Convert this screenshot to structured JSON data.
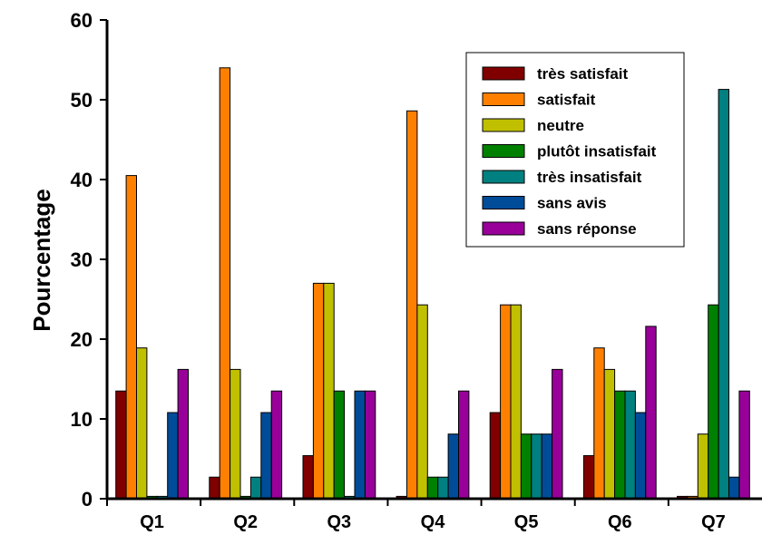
{
  "chart_data": {
    "type": "bar",
    "title": "",
    "xlabel": "",
    "ylabel": "Pourcentage",
    "ylim": [
      0,
      60
    ],
    "yticks": [
      0,
      10,
      20,
      30,
      40,
      50,
      60
    ],
    "grid": false,
    "legend_position": "top-right",
    "categories": [
      "Q1",
      "Q2",
      "Q3",
      "Q4",
      "Q5",
      "Q6",
      "Q7"
    ],
    "series": [
      {
        "name": "très satisfait",
        "color": "#800000",
        "values": [
          13.5,
          2.7,
          5.4,
          0.3,
          10.8,
          5.4,
          0.3
        ]
      },
      {
        "name": "satisfait",
        "color": "#ff8000",
        "values": [
          40.5,
          54.0,
          27.0,
          48.6,
          24.3,
          18.9,
          0.3
        ]
      },
      {
        "name": "neutre",
        "color": "#c0c000",
        "values": [
          18.9,
          16.2,
          27.0,
          24.3,
          24.3,
          16.2,
          8.1
        ]
      },
      {
        "name": "plutôt insatisfait",
        "color": "#008000",
        "values": [
          0.3,
          0.3,
          13.5,
          2.7,
          8.1,
          13.5,
          24.3
        ]
      },
      {
        "name": "très insatisfait",
        "color": "#008080",
        "values": [
          0.3,
          2.7,
          0.3,
          2.7,
          8.1,
          13.5,
          51.3
        ]
      },
      {
        "name": "sans avis",
        "color": "#004c99",
        "values": [
          10.8,
          10.8,
          13.5,
          8.1,
          8.1,
          10.8,
          2.7
        ]
      },
      {
        "name": "sans réponse",
        "color": "#990099",
        "values": [
          16.2,
          13.5,
          13.5,
          13.5,
          16.2,
          21.6,
          13.5
        ]
      }
    ]
  }
}
